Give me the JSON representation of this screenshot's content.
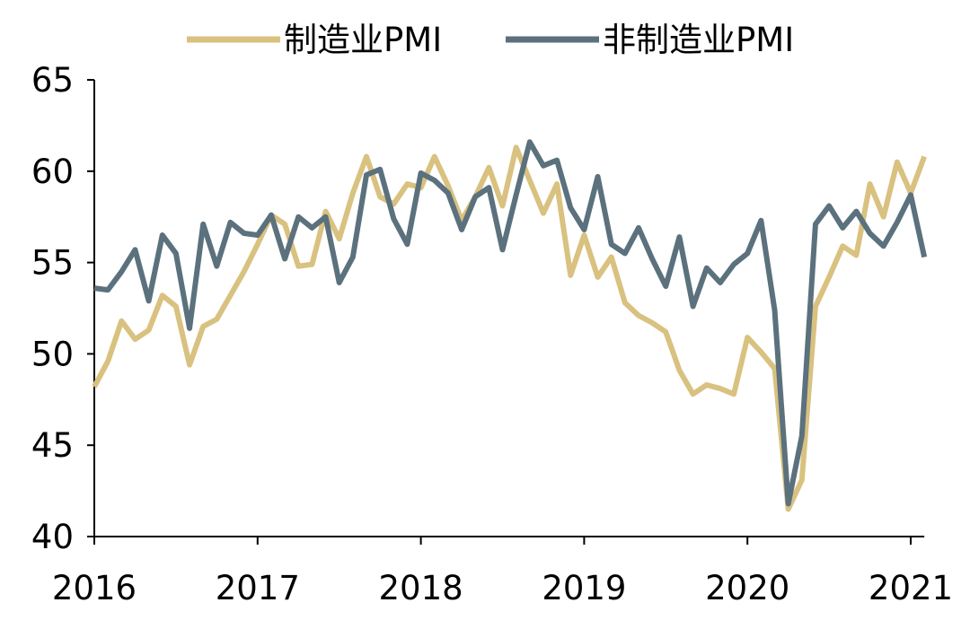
{
  "chart_data": {
    "type": "line",
    "title": "",
    "xlabel": "",
    "ylabel": "",
    "ylim": [
      40,
      65
    ],
    "yticks": [
      40,
      45,
      50,
      55,
      60,
      65
    ],
    "xlim": [
      "2016-01",
      "2021-02"
    ],
    "xticks": [
      "2016",
      "2017",
      "2018",
      "2019",
      "2020",
      "2021"
    ],
    "legend_position": "top-center",
    "grid": false,
    "x": [
      "2016-01",
      "2016-02",
      "2016-03",
      "2016-04",
      "2016-05",
      "2016-06",
      "2016-07",
      "2016-08",
      "2016-09",
      "2016-10",
      "2016-11",
      "2016-12",
      "2017-01",
      "2017-02",
      "2017-03",
      "2017-04",
      "2017-05",
      "2017-06",
      "2017-07",
      "2017-08",
      "2017-09",
      "2017-10",
      "2017-11",
      "2017-12",
      "2018-01",
      "2018-02",
      "2018-03",
      "2018-04",
      "2018-05",
      "2018-06",
      "2018-07",
      "2018-08",
      "2018-09",
      "2018-10",
      "2018-11",
      "2018-12",
      "2019-01",
      "2019-02",
      "2019-03",
      "2019-04",
      "2019-05",
      "2019-06",
      "2019-07",
      "2019-08",
      "2019-09",
      "2019-10",
      "2019-11",
      "2019-12",
      "2020-01",
      "2020-02",
      "2020-03",
      "2020-04",
      "2020-05",
      "2020-06",
      "2020-07",
      "2020-08",
      "2020-09",
      "2020-10",
      "2020-11",
      "2020-12",
      "2021-01",
      "2021-02"
    ],
    "series": [
      {
        "name": "制造业PMI",
        "color": "#D9C180",
        "values": [
          48.2,
          49.6,
          51.8,
          50.8,
          51.3,
          53.2,
          52.6,
          49.4,
          51.5,
          51.9,
          53.2,
          54.5,
          56.0,
          57.6,
          57.1,
          54.8,
          54.9,
          57.8,
          56.3,
          58.8,
          60.8,
          58.6,
          58.2,
          59.3,
          59.1,
          60.8,
          59.2,
          57.3,
          58.6,
          60.2,
          58.1,
          61.3,
          59.5,
          57.7,
          59.3,
          54.3,
          56.5,
          54.2,
          55.3,
          52.8,
          52.1,
          51.7,
          51.2,
          49.1,
          47.8,
          48.3,
          48.1,
          47.8,
          50.9,
          50.1,
          49.2,
          41.5,
          43.1,
          52.6,
          54.2,
          55.9,
          55.4,
          59.3,
          57.5,
          60.5,
          58.8,
          60.8
        ]
      },
      {
        "name": "非制造业PMI",
        "color": "#5B717D",
        "values": [
          53.6,
          53.5,
          54.5,
          55.7,
          52.9,
          56.5,
          55.5,
          51.4,
          57.1,
          54.8,
          57.2,
          56.6,
          56.5,
          57.6,
          55.2,
          57.5,
          56.9,
          57.5,
          53.9,
          55.3,
          59.8,
          60.1,
          57.4,
          56.0,
          59.9,
          59.5,
          58.8,
          56.8,
          58.6,
          59.1,
          55.7,
          58.7,
          61.6,
          60.3,
          60.6,
          58.0,
          56.8,
          59.7,
          56.0,
          55.5,
          56.9,
          55.2,
          53.7,
          56.4,
          52.6,
          54.7,
          53.9,
          54.9,
          55.5,
          57.3,
          52.4,
          41.8,
          45.5,
          57.1,
          58.1,
          56.9,
          57.8,
          56.6,
          55.9,
          57.2,
          58.7,
          55.3
        ]
      }
    ]
  }
}
